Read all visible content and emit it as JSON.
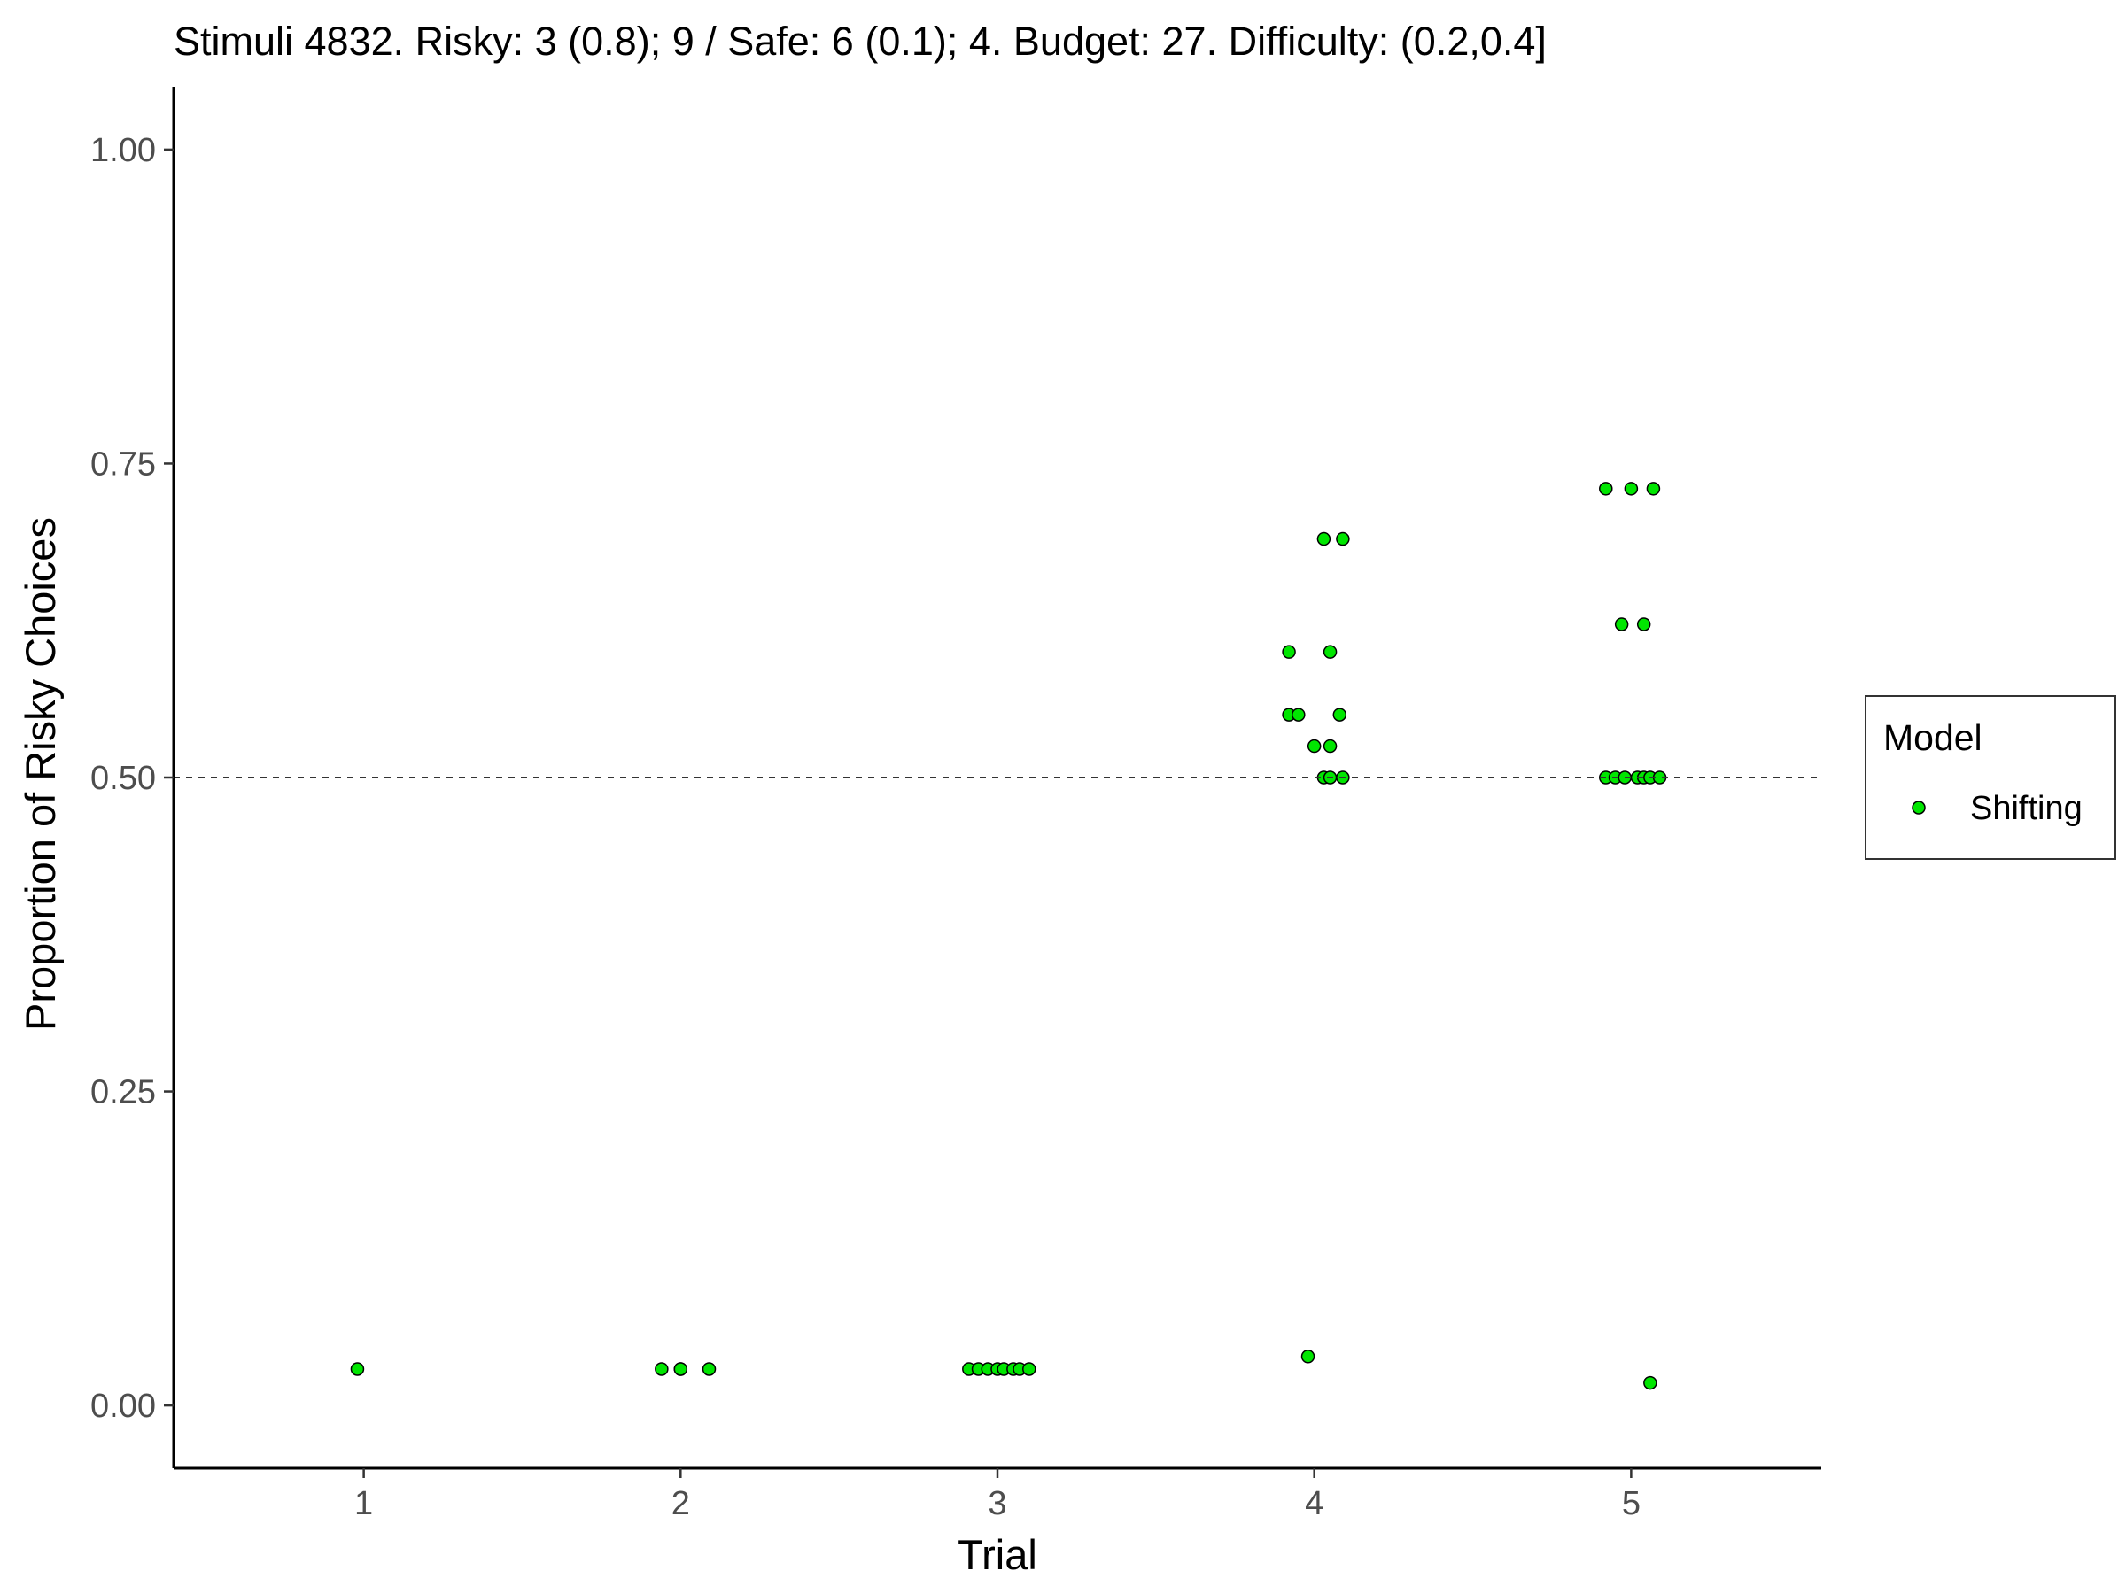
{
  "chart_data": {
    "type": "scatter",
    "title": "Stimuli 4832. Risky: 3 (0.8); 9 /  Safe: 6 (0.1); 4. Budget: 27. Difficulty: (0.2,0.4]",
    "xlabel": "Trial",
    "ylabel": "Proportion of Risky Choices",
    "xlim": [
      0.4,
      5.6
    ],
    "ylim": [
      -0.05,
      1.05
    ],
    "x_ticks": [
      1,
      2,
      3,
      4,
      5
    ],
    "x_tick_labels": [
      "1",
      "2",
      "3",
      "4",
      "5"
    ],
    "y_ticks": [
      0,
      0.25,
      0.5,
      0.75,
      1.0
    ],
    "y_tick_labels": [
      "0.00",
      "0.25",
      "0.50",
      "0.75",
      "1.00"
    ],
    "reference_line": {
      "y": 0.5,
      "style": "dashed"
    },
    "grid": false,
    "legend": {
      "title": "Model",
      "position": "right"
    },
    "series": [
      {
        "name": "Shifting",
        "color": "#00e600",
        "points": [
          {
            "x": 0.98,
            "y": 0.029
          },
          {
            "x": 1.94,
            "y": 0.029
          },
          {
            "x": 2.0,
            "y": 0.029
          },
          {
            "x": 2.09,
            "y": 0.029
          },
          {
            "x": 2.0,
            "y": 0.029
          },
          {
            "x": 2.91,
            "y": 0.029
          },
          {
            "x": 2.94,
            "y": 0.029
          },
          {
            "x": 2.97,
            "y": 0.029
          },
          {
            "x": 3.0,
            "y": 0.029
          },
          {
            "x": 3.02,
            "y": 0.029
          },
          {
            "x": 3.05,
            "y": 0.029
          },
          {
            "x": 3.07,
            "y": 0.029
          },
          {
            "x": 3.1,
            "y": 0.029
          },
          {
            "x": 4.03,
            "y": 0.69
          },
          {
            "x": 4.09,
            "y": 0.69
          },
          {
            "x": 3.92,
            "y": 0.6
          },
          {
            "x": 4.05,
            "y": 0.6
          },
          {
            "x": 3.92,
            "y": 0.55
          },
          {
            "x": 3.95,
            "y": 0.55
          },
          {
            "x": 4.08,
            "y": 0.55
          },
          {
            "x": 4.0,
            "y": 0.525
          },
          {
            "x": 4.05,
            "y": 0.525
          },
          {
            "x": 4.03,
            "y": 0.5
          },
          {
            "x": 4.05,
            "y": 0.5
          },
          {
            "x": 4.09,
            "y": 0.5
          },
          {
            "x": 3.98,
            "y": 0.039
          },
          {
            "x": 4.92,
            "y": 0.73
          },
          {
            "x": 5.0,
            "y": 0.73
          },
          {
            "x": 5.07,
            "y": 0.73
          },
          {
            "x": 4.97,
            "y": 0.622
          },
          {
            "x": 5.04,
            "y": 0.622
          },
          {
            "x": 4.92,
            "y": 0.5
          },
          {
            "x": 4.95,
            "y": 0.5
          },
          {
            "x": 4.98,
            "y": 0.5
          },
          {
            "x": 5.02,
            "y": 0.5
          },
          {
            "x": 5.04,
            "y": 0.5
          },
          {
            "x": 5.06,
            "y": 0.5
          },
          {
            "x": 5.09,
            "y": 0.5
          },
          {
            "x": 5.06,
            "y": 0.018
          }
        ]
      }
    ]
  }
}
